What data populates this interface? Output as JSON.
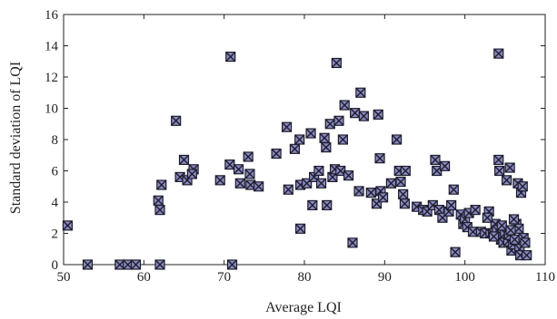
{
  "chart_data": {
    "type": "scatter",
    "xlabel": "Average LQI",
    "ylabel": "Standard deviation of LQI",
    "xlim": [
      50,
      110
    ],
    "ylim": [
      0,
      16
    ],
    "xticks": [
      "50",
      "60",
      "70",
      "80",
      "90",
      "100",
      "110"
    ],
    "yticks": [
      "0",
      "2",
      "4",
      "6",
      "8",
      "10",
      "12",
      "14",
      "16"
    ],
    "grid": false,
    "marker": "square-x",
    "marker_fill": "#8a8ac0",
    "marker_edge": "#1e1e2e",
    "series": [
      {
        "points": [
          [
            50.5,
            2.5
          ],
          [
            53,
            0
          ],
          [
            57,
            0
          ],
          [
            58,
            0
          ],
          [
            59,
            0
          ],
          [
            61.8,
            4.1
          ],
          [
            62,
            3.5
          ],
          [
            62.2,
            5.1
          ],
          [
            62,
            0
          ],
          [
            64,
            9.2
          ],
          [
            64.5,
            5.6
          ],
          [
            65,
            6.7
          ],
          [
            65.4,
            5.4
          ],
          [
            66.2,
            6.1
          ],
          [
            66,
            5.8
          ],
          [
            69.5,
            5.4
          ],
          [
            70.8,
            13.3
          ],
          [
            70.7,
            6.4
          ],
          [
            71,
            0
          ],
          [
            71.8,
            6.1
          ],
          [
            72,
            5.2
          ],
          [
            73,
            6.9
          ],
          [
            73.2,
            5.8
          ],
          [
            73.3,
            5.1
          ],
          [
            74.3,
            5.0
          ],
          [
            76.5,
            7.1
          ],
          [
            77.8,
            8.8
          ],
          [
            78,
            4.8
          ],
          [
            78.8,
            7.4
          ],
          [
            79.4,
            8.0
          ],
          [
            79.5,
            2.3
          ],
          [
            79.5,
            5.1
          ],
          [
            80.3,
            5.2
          ],
          [
            80.8,
            8.4
          ],
          [
            81,
            3.8
          ],
          [
            81.2,
            5.6
          ],
          [
            81.8,
            6.0
          ],
          [
            82.1,
            5.2
          ],
          [
            82.5,
            8.1
          ],
          [
            82.7,
            7.5
          ],
          [
            82.8,
            3.8
          ],
          [
            83.2,
            9.0
          ],
          [
            83.5,
            5.6
          ],
          [
            83.8,
            6.1
          ],
          [
            84,
            12.9
          ],
          [
            84.3,
            9.2
          ],
          [
            84.5,
            6.0
          ],
          [
            84.8,
            8.0
          ],
          [
            85,
            10.2
          ],
          [
            85.5,
            5.7
          ],
          [
            86,
            1.4
          ],
          [
            86.3,
            9.7
          ],
          [
            86.8,
            4.7
          ],
          [
            87,
            11.0
          ],
          [
            87.4,
            9.5
          ],
          [
            88.3,
            4.6
          ],
          [
            89,
            3.9
          ],
          [
            89.2,
            9.6
          ],
          [
            89.4,
            6.8
          ],
          [
            89.5,
            4.7
          ],
          [
            89.8,
            4.3
          ],
          [
            90.8,
            5.2
          ],
          [
            91.5,
            8.0
          ],
          [
            91.8,
            6.0
          ],
          [
            92,
            5.3
          ],
          [
            92.3,
            4.5
          ],
          [
            92.5,
            3.9
          ],
          [
            92.6,
            6.0
          ],
          [
            94,
            3.7
          ],
          [
            94.8,
            3.5
          ],
          [
            95.3,
            3.4
          ],
          [
            96,
            3.8
          ],
          [
            96.3,
            6.7
          ],
          [
            96.5,
            6.0
          ],
          [
            96.8,
            3.5
          ],
          [
            97.2,
            3.0
          ],
          [
            97.5,
            6.3
          ],
          [
            98,
            3.4
          ],
          [
            98.3,
            3.8
          ],
          [
            98.6,
            4.8
          ],
          [
            98.8,
            0.8
          ],
          [
            99.5,
            3.2
          ],
          [
            99.8,
            2.6
          ],
          [
            100,
            2.9
          ],
          [
            100.3,
            2.4
          ],
          [
            100.5,
            3.3
          ],
          [
            101,
            2.1
          ],
          [
            101.3,
            3.5
          ],
          [
            102,
            2.1
          ],
          [
            102.5,
            2.0
          ],
          [
            103,
            3.4
          ],
          [
            103.2,
            2.0
          ],
          [
            103.5,
            2.0
          ],
          [
            103.8,
            2.6
          ],
          [
            104,
            2.2
          ],
          [
            104.2,
            13.5
          ],
          [
            104.2,
            6.7
          ],
          [
            104.3,
            6.0
          ],
          [
            104.5,
            1.6
          ],
          [
            104.8,
            1.4
          ],
          [
            105,
            2.0
          ],
          [
            105.2,
            5.4
          ],
          [
            105.4,
            1.5
          ],
          [
            105.5,
            1.9
          ],
          [
            105.6,
            6.2
          ],
          [
            105.8,
            0.9
          ],
          [
            106,
            1.3
          ],
          [
            106.2,
            1.6
          ],
          [
            106.4,
            2.6
          ],
          [
            106.6,
            5.2
          ],
          [
            106.7,
            2.3
          ],
          [
            106.8,
            1.0
          ],
          [
            106.9,
            0.6
          ],
          [
            107,
            4.6
          ],
          [
            107.2,
            5.0
          ],
          [
            107.3,
            1.7
          ],
          [
            107.5,
            1.4
          ],
          [
            107.7,
            0.6
          ],
          [
            104.6,
            2.5
          ],
          [
            105.7,
            2.2
          ],
          [
            103.6,
            1.8
          ],
          [
            102.8,
            3.0
          ],
          [
            106.1,
            2.9
          ]
        ]
      }
    ]
  }
}
